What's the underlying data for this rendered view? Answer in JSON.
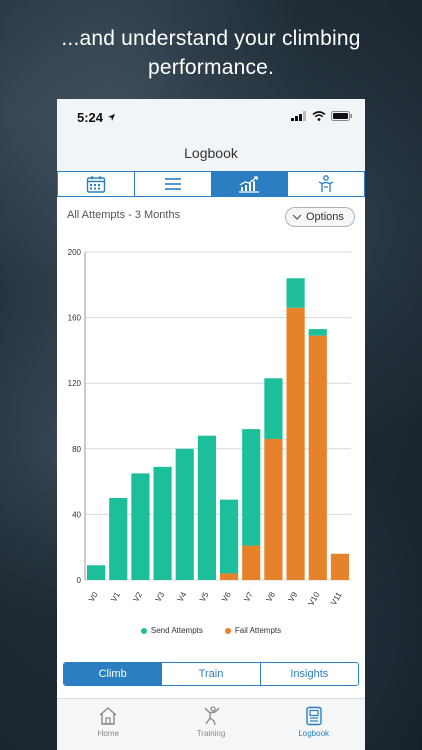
{
  "headline": {
    "line1": "...and understand your climbing",
    "line2": "performance."
  },
  "status_bar": {
    "time": "5:24"
  },
  "nav": {
    "title": "Logbook"
  },
  "top_segments": [
    {
      "icon": "calendar-icon",
      "active": false
    },
    {
      "icon": "list-icon",
      "active": false
    },
    {
      "icon": "chart-icon",
      "active": true
    },
    {
      "icon": "climber-icon",
      "active": false
    }
  ],
  "chart_header": {
    "title": "All Attempts - 3 Months",
    "options_label": "Options"
  },
  "chart_data": {
    "type": "bar",
    "stacked": true,
    "categories": [
      "V0",
      "V1",
      "V2",
      "V3",
      "V4",
      "V5",
      "V6",
      "V7",
      "V8",
      "V9",
      "V10",
      "V11"
    ],
    "series": [
      {
        "name": "Fail Attempts",
        "color": "#e6822a",
        "values": [
          0,
          0,
          0,
          0,
          0,
          0,
          4,
          21,
          86,
          166,
          149,
          16
        ]
      },
      {
        "name": "Send Attempts",
        "color": "#1dbf9a",
        "values": [
          9,
          50,
          65,
          69,
          80,
          88,
          45,
          71,
          37,
          18,
          4,
          0
        ]
      }
    ],
    "ylim": [
      0,
      200
    ],
    "yticks": [
      0,
      40,
      80,
      120,
      160,
      200
    ],
    "grid": true,
    "legend": "bottom"
  },
  "legend": {
    "send_label": "Send Attempts",
    "fail_label": "Fail Attempts"
  },
  "bottom_segments": [
    {
      "label": "Climb",
      "active": true
    },
    {
      "label": "Train",
      "active": false
    },
    {
      "label": "Insights",
      "active": false
    }
  ],
  "tabbar": [
    {
      "label": "Home",
      "icon": "home-icon",
      "active": false
    },
    {
      "label": "Training",
      "icon": "climber-icon",
      "active": false
    },
    {
      "label": "Logbook",
      "icon": "logbook-icon",
      "active": true
    }
  ],
  "colors": {
    "accent": "#2b7ec1",
    "send": "#1dbf9a",
    "fail": "#e6822a"
  }
}
